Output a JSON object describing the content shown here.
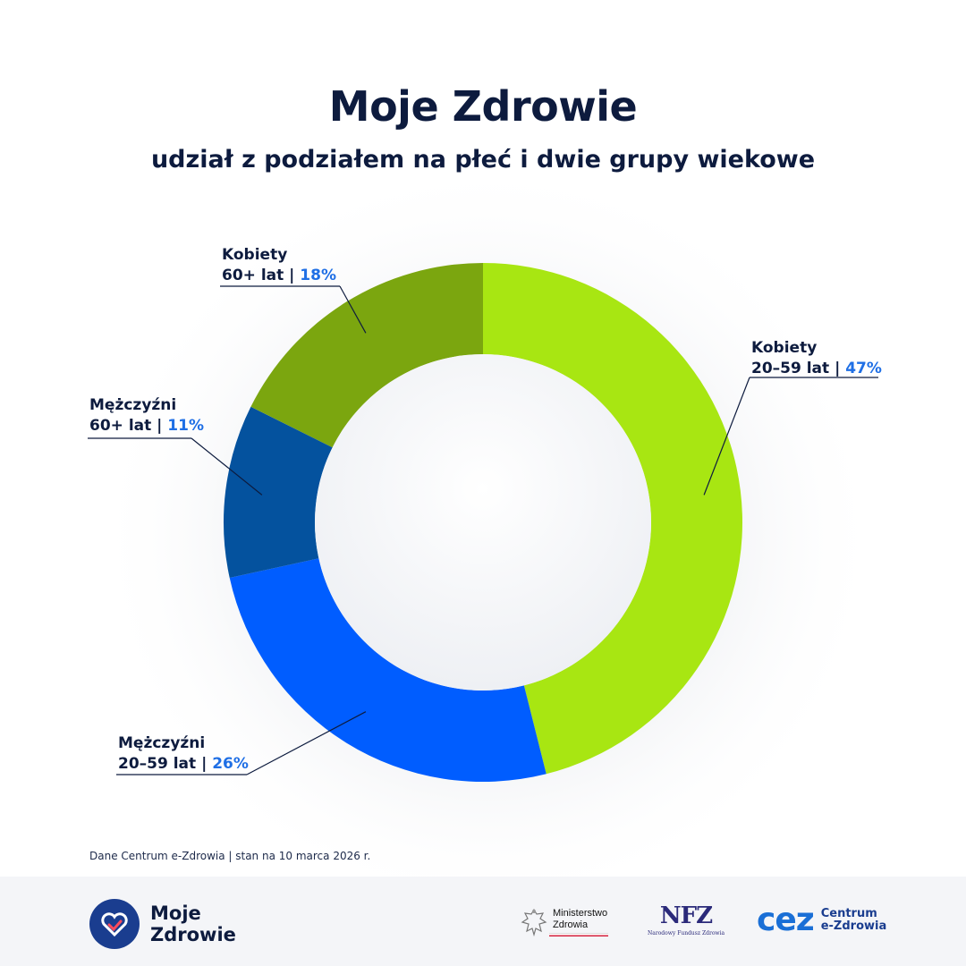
{
  "chart_data": {
    "type": "pie",
    "title": "Moje Zdrowie",
    "subtitle": "udział z podziałem na płeć i dwie grupy wiekowe",
    "donut": true,
    "slices": [
      {
        "label_line1": "Kobiety",
        "label_line2": "20–59 lat",
        "value": 47,
        "value_text": "47%",
        "color": "#a8e612"
      },
      {
        "label_line1": "Mężczyźni",
        "label_line2": "20–59 lat",
        "value": 26,
        "value_text": "26%",
        "color": "#005dff"
      },
      {
        "label_line1": "Mężczyźni",
        "label_line2": "60+ lat",
        "value": 11,
        "value_text": "11%",
        "color": "#04529e"
      },
      {
        "label_line1": "Kobiety",
        "label_line2": "60+ lat",
        "value": 18,
        "value_text": "18%",
        "color": "#7ba60f"
      }
    ],
    "percent_color": "#1f6fe5",
    "label_color": "#0d1b3e"
  },
  "source": "Dane Centrum e-Zdrowia | stan na 10 marca 2026 r.",
  "footer": {
    "app_logo": {
      "line1": "Moje",
      "line2": "Zdrowie",
      "icon": "heart-check-icon"
    },
    "ministry": {
      "line1": "Ministerstwo",
      "line2": "Zdrowia",
      "icon": "eagle-emblem-icon"
    },
    "nfz": {
      "mark": "NFZ",
      "sub": "Narodowy Fundusz Zdrowia"
    },
    "cez": {
      "mark": "cez",
      "line1": "Centrum",
      "line2": "e-Zdrowia"
    }
  }
}
